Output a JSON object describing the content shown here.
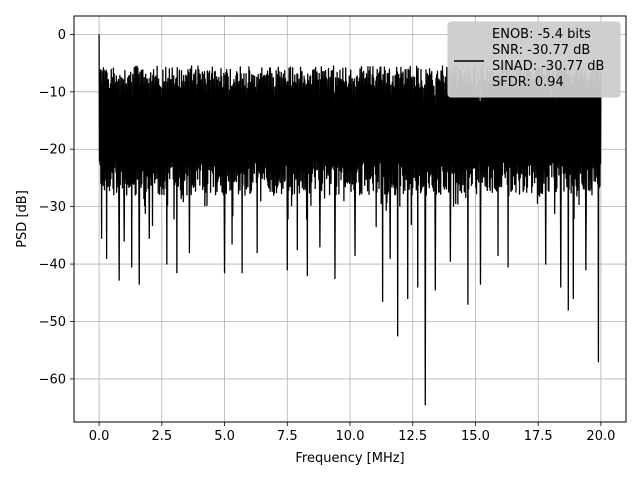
{
  "chart_data": {
    "type": "line",
    "xlabel": "Frequency [MHz]",
    "ylabel": "PSD [dB]",
    "xlim": [
      -1.0,
      21.0
    ],
    "ylim": [
      -67.5,
      3.2
    ],
    "xticks": [
      0.0,
      2.5,
      5.0,
      7.5,
      10.0,
      12.5,
      15.0,
      17.5,
      20.0
    ],
    "xtick_labels": [
      "0.0",
      "2.5",
      "5.0",
      "7.5",
      "10.0",
      "12.5",
      "15.0",
      "17.5",
      "20.0"
    ],
    "yticks": [
      0,
      -10,
      -20,
      -30,
      -40,
      -50,
      -60
    ],
    "ytick_labels": [
      "0",
      "−10",
      "−20",
      "−30",
      "−40",
      "−50",
      "−60"
    ],
    "grid": true,
    "line_color": "#000000",
    "legend": {
      "placement": "upper-right",
      "entries": [
        "ENOB: -5.4 bits",
        "SNR: -30.77 dB",
        "SINAD: -30.77 dB",
        "SFDR: 0.94"
      ],
      "background": "#cccccc"
    },
    "series_summary": {
      "x_range": [
        0.0,
        20.0
      ],
      "typical_upper": -6,
      "typical_lower": -26,
      "peak": {
        "x": 0.0,
        "y": 0.0
      }
    },
    "notable_dips": [
      {
        "x": 0.1,
        "y": -35.5
      },
      {
        "x": 0.3,
        "y": -39.0
      },
      {
        "x": 0.8,
        "y": -42.8
      },
      {
        "x": 1.0,
        "y": -36.0
      },
      {
        "x": 1.3,
        "y": -40.5
      },
      {
        "x": 1.6,
        "y": -43.5
      },
      {
        "x": 2.0,
        "y": -35.5
      },
      {
        "x": 2.7,
        "y": -40.0
      },
      {
        "x": 3.1,
        "y": -41.5
      },
      {
        "x": 3.6,
        "y": -38.0
      },
      {
        "x": 5.0,
        "y": -41.5
      },
      {
        "x": 5.3,
        "y": -36.5
      },
      {
        "x": 5.7,
        "y": -41.5
      },
      {
        "x": 6.3,
        "y": -38.0
      },
      {
        "x": 7.5,
        "y": -41.0
      },
      {
        "x": 7.9,
        "y": -37.5
      },
      {
        "x": 8.3,
        "y": -42.0
      },
      {
        "x": 8.8,
        "y": -37.0
      },
      {
        "x": 9.4,
        "y": -42.5
      },
      {
        "x": 10.2,
        "y": -38.5
      },
      {
        "x": 11.3,
        "y": -46.5
      },
      {
        "x": 11.6,
        "y": -39.0
      },
      {
        "x": 11.9,
        "y": -52.5
      },
      {
        "x": 12.3,
        "y": -46.0
      },
      {
        "x": 12.7,
        "y": -44.0
      },
      {
        "x": 13.0,
        "y": -64.5
      },
      {
        "x": 13.4,
        "y": -44.5
      },
      {
        "x": 14.0,
        "y": -39.5
      },
      {
        "x": 14.7,
        "y": -47.0
      },
      {
        "x": 15.2,
        "y": -43.5
      },
      {
        "x": 15.9,
        "y": -38.5
      },
      {
        "x": 16.3,
        "y": -40.5
      },
      {
        "x": 17.8,
        "y": -40.0
      },
      {
        "x": 18.4,
        "y": -44.0
      },
      {
        "x": 18.7,
        "y": -48.0
      },
      {
        "x": 18.9,
        "y": -46.0
      },
      {
        "x": 19.4,
        "y": -41.0
      },
      {
        "x": 19.9,
        "y": -57.0
      }
    ]
  }
}
